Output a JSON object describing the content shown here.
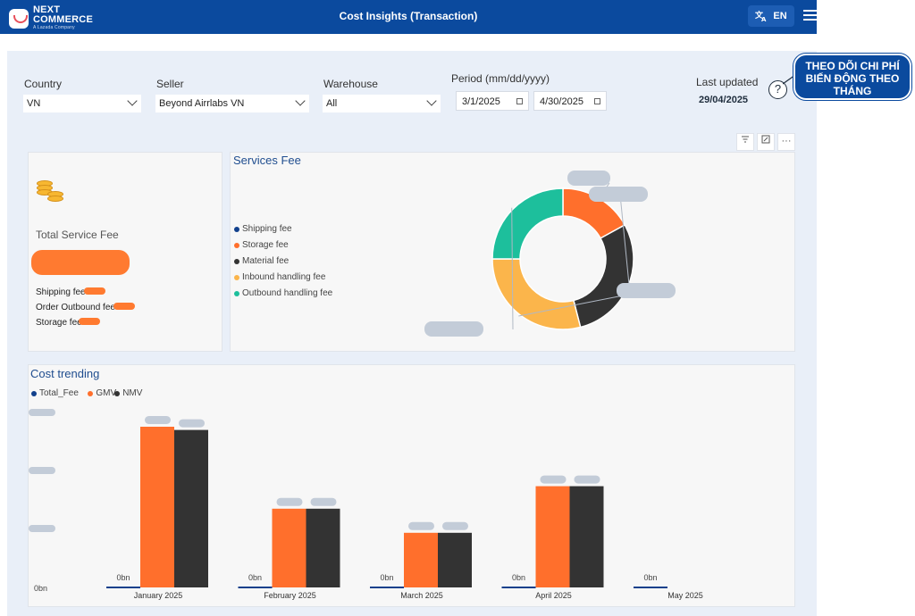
{
  "header": {
    "logo_line1": "NEXT",
    "logo_line2": "COMMERCE",
    "logo_tagline": "A Lazada Company",
    "title": "Cost Insights (Transaction)",
    "language": "EN",
    "translate_icon": "translate-icon",
    "menu_icon": "hamburger-menu-icon"
  },
  "filters": {
    "country_label": "Country",
    "country_value": "VN",
    "seller_label": "Seller",
    "seller_value": "Beyond Airrlabs VN",
    "warehouse_label": "Warehouse",
    "warehouse_value": "All",
    "period_label": "Period (mm/dd/yyyy)",
    "period_start": "3/1/2025",
    "period_end": "4/30/2025"
  },
  "last_updated": {
    "label": "Last updated",
    "value": "29/04/2025"
  },
  "callout": {
    "text": "THEO DÕI CHI PHÍ BIẾN ĐỘNG THEO THÁNG"
  },
  "summary_card": {
    "title": "Total Service Fee",
    "items": [
      "Shipping fee",
      "Order Outbound fee",
      "Storage fee"
    ]
  },
  "services_fee": {
    "title": "Services Fee",
    "legend": [
      {
        "name": "Shipping fee",
        "color": "#12408c"
      },
      {
        "name": "Storage fee",
        "color": "#ff6f2c"
      },
      {
        "name": "Material fee",
        "color": "#333333"
      },
      {
        "name": "Inbound handling fee",
        "color": "#fbb54b"
      },
      {
        "name": "Outbound handling fee",
        "color": "#1dbf9c"
      }
    ]
  },
  "cost_trending": {
    "title": "Cost trending",
    "legend": [
      {
        "name": "Total_Fee",
        "color": "#12408c"
      },
      {
        "name": "GMV",
        "color": "#ff6f2c"
      },
      {
        "name": "NMV",
        "color": "#333333"
      }
    ],
    "y_zero_label": "0bn"
  },
  "chart_data": [
    {
      "type": "pie",
      "title": "Services Fee",
      "categories": [
        "Storage fee",
        "Material fee",
        "Inbound handling fee",
        "Outbound handling fee",
        "Shipping fee"
      ],
      "values": [
        17,
        29,
        29,
        25,
        0
      ],
      "colors": [
        "#ff6f2c",
        "#333333",
        "#fbb54b",
        "#1dbf9c",
        "#12408c"
      ],
      "legend": "left"
    },
    {
      "type": "bar",
      "title": "Cost trending",
      "categories": [
        "January 2025",
        "February 2025",
        "March 2025",
        "April 2025",
        "May 2025"
      ],
      "series": [
        {
          "name": "Total_Fee",
          "values": [
            0,
            0,
            0,
            0,
            0
          ],
          "color": "#12408c"
        },
        {
          "name": "GMV",
          "values": [
            100,
            49,
            34,
            63,
            0
          ],
          "color": "#ff6f2c"
        },
        {
          "name": "NMV",
          "values": [
            98,
            49,
            34,
            63,
            0
          ],
          "color": "#333333"
        }
      ],
      "bar_labels": [
        "0bn",
        "0bn",
        "0bn",
        "0bn",
        "0bn"
      ],
      "ylim": [
        0,
        110
      ],
      "legend": "top-left"
    }
  ]
}
